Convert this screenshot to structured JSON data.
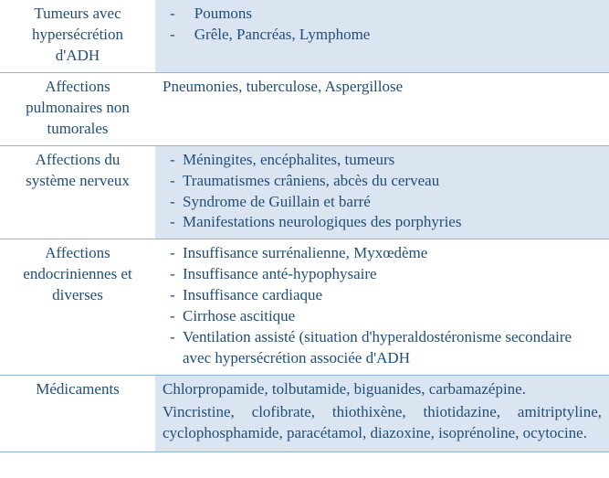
{
  "colors": {
    "text": "#1f4e79",
    "shade": "#dbe5f1",
    "rule": "#95b3d7",
    "background": "#ffffff"
  },
  "rows": [
    {
      "category_lines": [
        "Tumeurs avec",
        "hypersécrétion",
        "d'ADH"
      ],
      "items": [
        "Poumons",
        "Grêle, Pancréas, Lymphome"
      ]
    },
    {
      "category_lines": [
        "Affections",
        "pulmonaires non",
        "tumorales"
      ],
      "text": "Pneumonies, tuberculose, Aspergillose"
    },
    {
      "category_lines": [
        "Affections du",
        "système nerveux"
      ],
      "items": [
        "Méningites, encéphalites, tumeurs",
        "Traumatismes crâniens, abcès du cerveau",
        "Syndrome de Guillain et barré",
        "Manifestations neurologiques des porphyries"
      ]
    },
    {
      "category_lines": [
        "Affections",
        "endocriniennes et",
        "diverses"
      ],
      "items": [
        "Insuffisance surrénalienne, Myxœdème",
        "Insuffisance anté-hypophysaire",
        "Insuffisance cardiaque",
        "Cirrhose ascitique",
        "Ventilation assisté (situation d'hyperaldostéronisme secondaire avec hypersécrétion associée d'ADH"
      ]
    },
    {
      "category_lines": [
        "Médicaments"
      ],
      "paragraphs": [
        "Chlorpropamide, tolbutamide, biguanides, carbamazépine.",
        "Vincristine, clofibrate, thiothixène, thiotidazine, amitriptyline, cyclophosphamide, paracétamol, diazoxine, isoprénoline, ocytocine."
      ]
    }
  ]
}
